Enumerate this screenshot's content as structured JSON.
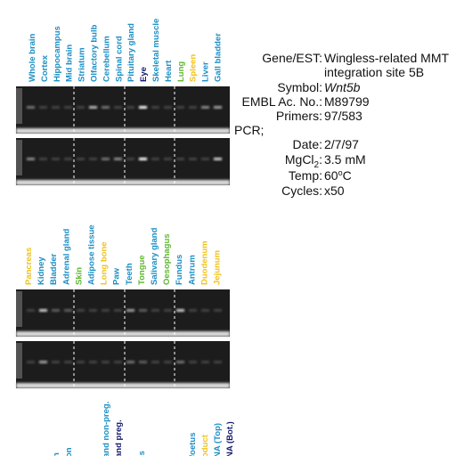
{
  "panel_top": {
    "lanes": [
      {
        "label": "Whole brain",
        "color": "#1b8ec4"
      },
      {
        "label": "Cortex",
        "color": "#1b8ec4"
      },
      {
        "label": "Hippocampus",
        "color": "#1b8ec4"
      },
      {
        "label": "Mid brain",
        "color": "#1b8ec4"
      },
      {
        "label": "Striatum",
        "color": "#1b8ec4"
      },
      {
        "label": "Olfactory bulb",
        "color": "#1b8ec4"
      },
      {
        "label": "Cerebellum",
        "color": "#1b8ec4"
      },
      {
        "label": "Spinal cord",
        "color": "#1b8ec4"
      },
      {
        "label": "Pituitary gland",
        "color": "#1b8ec4"
      },
      {
        "label": "Eye",
        "color": "#141a6e"
      },
      {
        "label": "Skeletal muscle",
        "color": "#1b8ec4"
      },
      {
        "label": "Heart",
        "color": "#1b8ec4"
      },
      {
        "label": "Lung",
        "color": "#5cb82e"
      },
      {
        "label": "Spleen",
        "color": "#f0c21a"
      },
      {
        "label": "Liver",
        "color": "#1b8ec4"
      },
      {
        "label": "Gall bladder",
        "color": "#1b8ec4"
      }
    ]
  },
  "panel_bottom": {
    "lanes": [
      {
        "label": "Pancreas",
        "color": "#f0c21a"
      },
      {
        "label": "Kidney",
        "color": "#1b8ec4"
      },
      {
        "label": "Bladder",
        "color": "#1b8ec4"
      },
      {
        "label": "Adrenal gland",
        "color": "#1b8ec4"
      },
      {
        "label": "Skin",
        "color": "#5cb82e"
      },
      {
        "label": "Adipose tissue",
        "color": "#1b8ec4"
      },
      {
        "label": "Long bone",
        "color": "#f0c21a"
      },
      {
        "label": "Paw",
        "color": "#1b8ec4"
      },
      {
        "label": "Teeth",
        "color": "#1b8ec4"
      },
      {
        "label": "Tongue",
        "color": "#5cb82e"
      },
      {
        "label": "Salivary gland",
        "color": "#1b8ec4"
      },
      {
        "label": "Oesophagus",
        "color": "#5cb82e"
      },
      {
        "label": "Fundus",
        "color": "#1b8ec4"
      },
      {
        "label": "Antrum",
        "color": "#1b8ec4"
      },
      {
        "label": "Duodenum",
        "color": "#f0c21a"
      },
      {
        "label": "Jejunum",
        "color": "#f0c21a"
      }
    ]
  },
  "panel_cut": {
    "lanes": [
      {
        "label": "n",
        "color": "#1b8ec4"
      },
      {
        "label": "on",
        "color": "#1b8ec4"
      },
      {
        "label": "and non-preg.",
        "color": "#1b8ec4"
      },
      {
        "label": "and preg.",
        "color": "#141a6e"
      },
      {
        "label": "is",
        "color": "#1b8ec4"
      },
      {
        "label": "foetus",
        "color": "#1b8ec4"
      },
      {
        "label": "oduct",
        "color": "#f0c21a"
      },
      {
        "label": "NA (Top)",
        "color": "#1b8ec4"
      },
      {
        "label": "NA (Bot.)",
        "color": "#141a6e"
      }
    ]
  },
  "info": {
    "gene_label": "Gene/EST:",
    "gene_value": [
      "Wingless-related MMT",
      "integration site 5B"
    ],
    "symbol_label": "Symbol:",
    "symbol_value": "Wnt5b",
    "embl_label": "EMBL Ac. No.:",
    "embl_value": "M89799",
    "primers_label": "Primers:",
    "primers_value": "97/583",
    "pcr_label": "PCR;",
    "date_label": "Date:",
    "date_value": "2/7/97",
    "mg_label": "MgCl",
    "mg_sub": "2",
    "mg_colon": ":",
    "mg_value": "3.5 mM",
    "temp_label": "Temp:",
    "temp_value": "60",
    "temp_sup": "o",
    "temp_unit": "C",
    "cycles_label": "Cycles:",
    "cycles_value": "x50"
  }
}
